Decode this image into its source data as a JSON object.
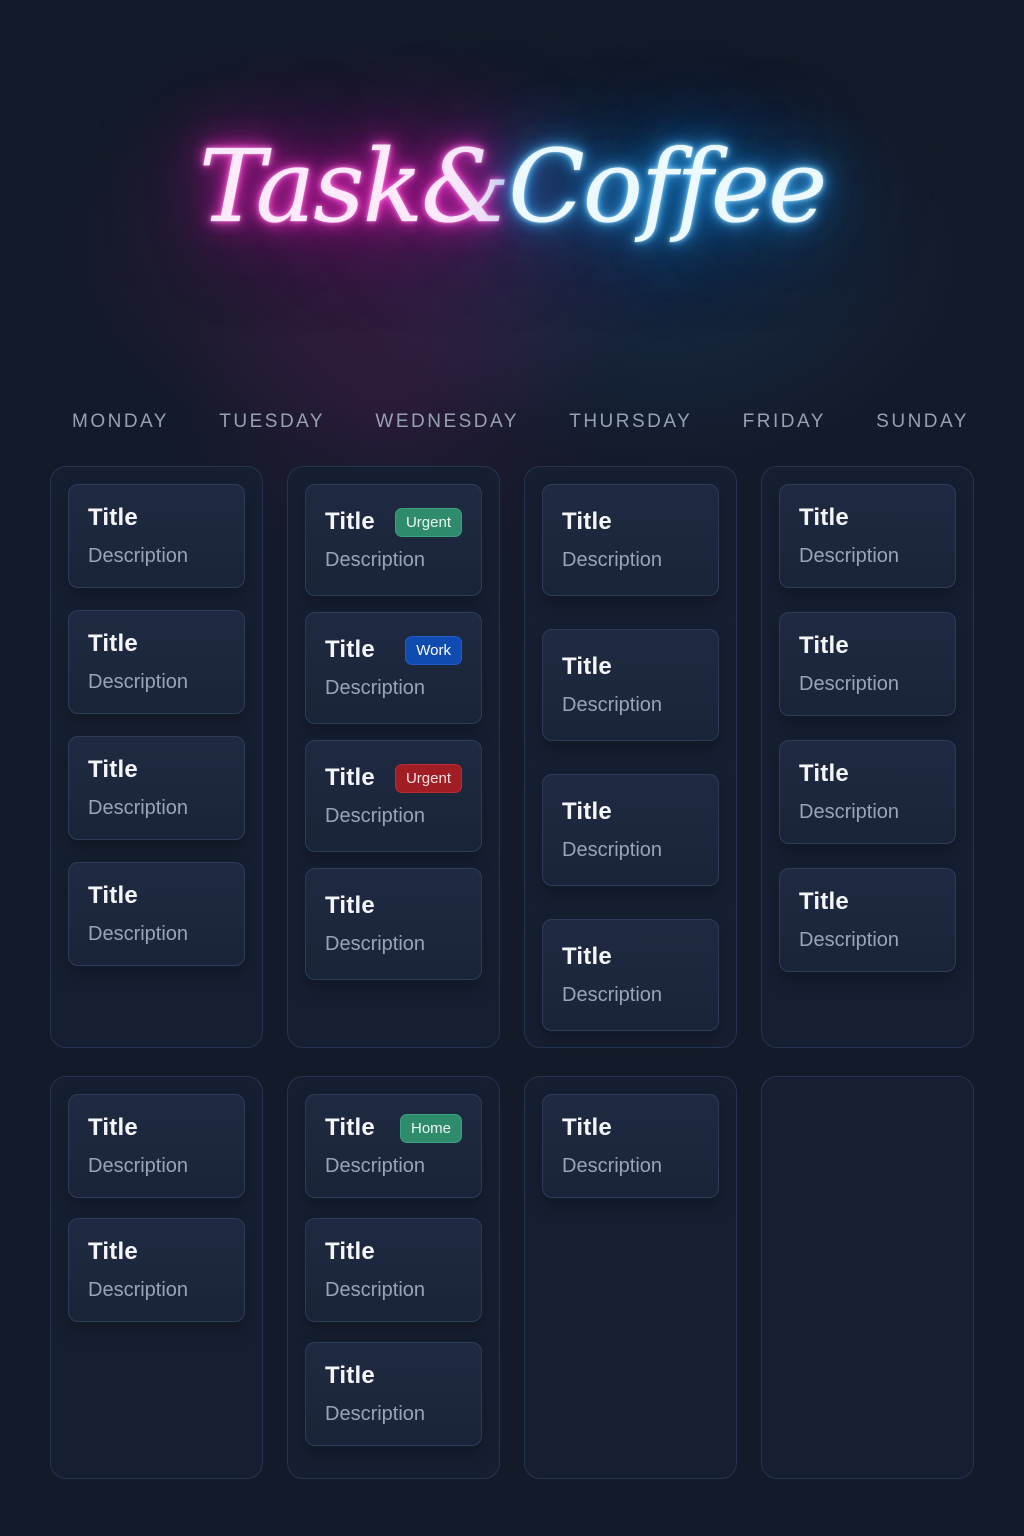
{
  "title": {
    "left": "Task&",
    "right": "Coffee"
  },
  "colors": {
    "background": "#131a29",
    "neon_pink": "#ff3fd1",
    "neon_blue": "#45b5ff",
    "column_bg": "#161f31",
    "card_bg": "#1c2740",
    "title_text": "#f4f6fa",
    "description_text": "#9aa3b7",
    "day_header_text": "#97a1b4",
    "badge_green": "#2e8b6c",
    "badge_blue": "#0f4bb0",
    "badge_red": "#a01e23"
  },
  "days": [
    "MONDAY",
    "TUESDAY",
    "WEDNESDAY",
    "THURSDAY",
    "FRIDAY",
    "SUNDAY"
  ],
  "board": {
    "rows": [
      {
        "columns": [
          {
            "cards": [
              {
                "title": "Title",
                "description": "Description"
              },
              {
                "title": "Title",
                "description": "Description"
              },
              {
                "title": "Title",
                "description": "Description"
              },
              {
                "title": "Title",
                "description": "Description"
              }
            ]
          },
          {
            "cards": [
              {
                "title": "Title",
                "description": "Description",
                "badge": {
                  "label": "Urgent",
                  "color": "green"
                }
              },
              {
                "title": "Title",
                "description": "Description",
                "badge": {
                  "label": "Work",
                  "color": "blue"
                }
              },
              {
                "title": "Title",
                "description": "Description",
                "badge": {
                  "label": "Urgent",
                  "color": "red"
                }
              },
              {
                "title": "Title",
                "description": "Description"
              }
            ]
          },
          {
            "cards": [
              {
                "title": "Title",
                "description": "Description"
              },
              {
                "title": "Title",
                "description": "Description"
              },
              {
                "title": "Title",
                "description": "Description"
              },
              {
                "title": "Title",
                "description": "Description"
              }
            ]
          },
          {
            "cards": [
              {
                "title": "Title",
                "description": "Description"
              },
              {
                "title": "Title",
                "description": "Description"
              },
              {
                "title": "Title",
                "description": "Description"
              },
              {
                "title": "Title",
                "description": "Description"
              }
            ]
          }
        ]
      },
      {
        "columns": [
          {
            "cards": [
              {
                "title": "Title",
                "description": "Description"
              },
              {
                "title": "Title",
                "description": "Description"
              }
            ]
          },
          {
            "cards": [
              {
                "title": "Title",
                "description": "Description",
                "badge": {
                  "label": "Home",
                  "color": "green"
                }
              },
              {
                "title": "Title",
                "description": "Description"
              },
              {
                "title": "Title",
                "description": "Description"
              }
            ]
          },
          {
            "cards": [
              {
                "title": "Title",
                "description": "Description"
              }
            ]
          },
          {
            "cards": []
          }
        ]
      }
    ]
  }
}
